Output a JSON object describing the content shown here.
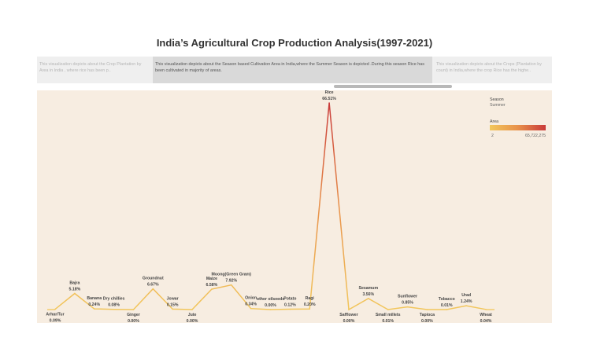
{
  "title": "India’s Agricultural Crop Production Analysis(1997-2021)",
  "story_points": [
    {
      "text": "This visualization depicts about the Crop Plantation by Area in India , where rice has been p.."
    },
    {
      "text": "This visualization depicts about the Season based Cultivation Area in India,where the Summer Season is depicted .During this season Rice has been cultivated in majority of areas."
    },
    {
      "text": "This visualization depicts about the Crops (Plantation by count) in India,where the crop Rice has the highe.."
    }
  ],
  "filter": {
    "label": "Season",
    "value": "Summer"
  },
  "legend": {
    "title": "Area",
    "min_label": "2",
    "max_label": "65,722,275",
    "colors": [
      "#f2c75c",
      "#e8914a",
      "#c93a3a"
    ]
  },
  "chart_data": {
    "type": "line",
    "title": "India’s Agricultural Crop Production Analysis(1997-2021)",
    "categories": [
      "Arhar/Tur",
      "Bajra",
      "Banana",
      "Dry chillies",
      "Ginger",
      "Groundnut",
      "Jowar",
      "Jute",
      "Maize",
      "Moong(Green Gram)",
      "Onion",
      "other oilseeds",
      "Potato",
      "Ragi",
      "Rice",
      "Safflower",
      "Sesamum",
      "Small millets",
      "Sunflower",
      "Tapioca",
      "Tobacco",
      "Urad",
      "Wheat"
    ],
    "values": [
      0.09,
      5.18,
      0.24,
      0.08,
      0.0,
      6.67,
      0.15,
      0.0,
      6.58,
      7.92,
      0.34,
      0.0,
      0.12,
      0.2,
      66.51,
      0.0,
      3.56,
      0.01,
      0.85,
      0.0,
      0.01,
      1.24,
      0.04
    ],
    "value_labels": [
      "0.09%",
      "5.18%",
      "0.24%",
      "0.08%",
      "0.00%",
      "6.67%",
      "0.15%",
      "0.00%",
      "6.58%",
      "7.92%",
      "0.34%",
      "0.00%",
      "0.12%",
      "0.20%",
      "66.51%",
      "0.00%",
      "3.56%",
      "0.01%",
      "0.85%",
      "0.00%",
      "0.01%",
      "1.24%",
      "0.04%"
    ],
    "label_position": [
      "below",
      "above",
      "above",
      "above",
      "below",
      "above",
      "above",
      "below",
      "above",
      "above",
      "above",
      "above",
      "above",
      "above",
      "above",
      "below",
      "above",
      "below",
      "above",
      "below",
      "above",
      "above",
      "below"
    ],
    "ylim": [
      0,
      66.51
    ],
    "grid": false,
    "legend_position": "top-right"
  }
}
